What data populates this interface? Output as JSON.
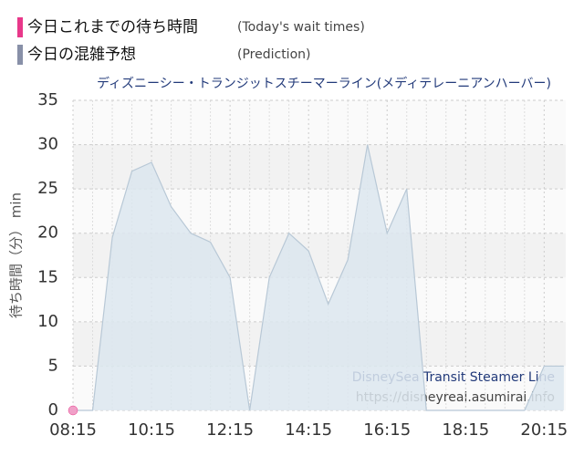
{
  "chart_data": {
    "type": "area",
    "title": "ディズニーシー・トランジットスチーマーライン(メディテレーニアンハーバー)",
    "ylabel": "待ち時間（分） min",
    "watermark": [
      "DisneySea Transit Steamer Line",
      "https://disneyreal.asumirai.info"
    ],
    "series": [
      {
        "name": "今日これまでの待ち時間",
        "note": "(Today's wait times)",
        "color": "#e8388a",
        "x": [
          495
        ],
        "values": [
          0
        ]
      },
      {
        "name": "今日の混雑予想",
        "note": "(Prediction)",
        "color": "#8890a8",
        "x": [
          495,
          525,
          555,
          585,
          615,
          645,
          675,
          705,
          735,
          765,
          795,
          825,
          855,
          885,
          915,
          945,
          975,
          1005,
          1035,
          1065,
          1095,
          1125,
          1155,
          1185,
          1215,
          1245
        ],
        "values": [
          0,
          0,
          19.5,
          27,
          28,
          23,
          20,
          19,
          15,
          0,
          15,
          20,
          18,
          12,
          17,
          30,
          20,
          25,
          0,
          0,
          0,
          0,
          0,
          0,
          5,
          5
        ]
      }
    ],
    "xlim": [
      495,
      1248
    ],
    "xticks": [
      {
        "value": 495,
        "label": "08:15"
      },
      {
        "value": 615,
        "label": "10:15"
      },
      {
        "value": 735,
        "label": "12:15"
      },
      {
        "value": 855,
        "label": "14:15"
      },
      {
        "value": 975,
        "label": "16:15"
      },
      {
        "value": 1095,
        "label": "18:15"
      },
      {
        "value": 1215,
        "label": "20:15"
      }
    ],
    "ylim": [
      0,
      35
    ],
    "yticks": [
      0,
      5,
      10,
      15,
      20,
      25,
      30,
      35
    ],
    "grid": true
  }
}
